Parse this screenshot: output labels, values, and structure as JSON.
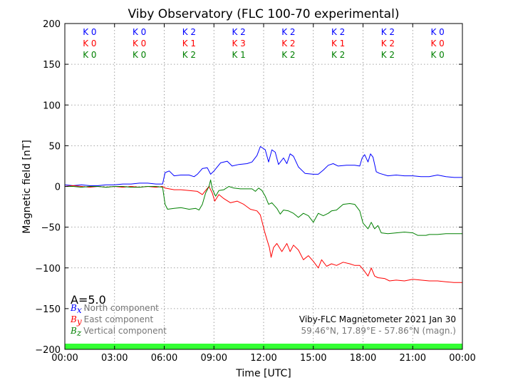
{
  "chart_data": {
    "type": "line",
    "title": "Viby Observatory (FLC 100-70 experimental)",
    "xlabel": "Time [UTC]",
    "ylabel": "Magnetic field [nT]",
    "xlim": [
      0,
      24
    ],
    "ylim": [
      -200,
      200
    ],
    "x_ticks": [
      0,
      3,
      6,
      9,
      12,
      15,
      18,
      21,
      24
    ],
    "x_tick_labels": [
      "00:00",
      "03:00",
      "06:00",
      "09:00",
      "12:00",
      "15:00",
      "18:00",
      "21:00",
      "00:00"
    ],
    "y_ticks": [
      -200,
      -150,
      -100,
      -50,
      0,
      50,
      100,
      150,
      200
    ],
    "y_tick_labels": [
      "−200",
      "−150",
      "−100",
      "−50",
      "0",
      "50",
      "100",
      "150",
      "200"
    ],
    "grid": true,
    "k_indices": {
      "labels": [
        [
          "K 0",
          "K 0",
          "K 2",
          "K 2",
          "K 2",
          "K 2",
          "K 2",
          "K 0"
        ],
        [
          "K 0",
          "K 0",
          "K 1",
          "K 3",
          "K 2",
          "K 1",
          "K 2",
          "K 0"
        ],
        [
          "K 0",
          "K 0",
          "K 2",
          "K 1",
          "K 2",
          "K 2",
          "K 2",
          "K 0"
        ]
      ]
    },
    "a_index": "A=5.0",
    "legend": [
      {
        "symbol": "B",
        "sub": "x",
        "text": "North component"
      },
      {
        "symbol": "B",
        "sub": "y",
        "text": "East component"
      },
      {
        "symbol": "B",
        "sub": "z",
        "text": "Vertical component"
      }
    ],
    "info_line1": "Viby-FLC Magnetometer 2021 Jan 30",
    "info_line2": "59.46°N, 17.89°E - 57.86°N (magn.)",
    "series": [
      {
        "key": "north",
        "color": "#0000ff",
        "points": [
          [
            0,
            2
          ],
          [
            0.5,
            1
          ],
          [
            1,
            2
          ],
          [
            1.5,
            1
          ],
          [
            2,
            1
          ],
          [
            2.5,
            2
          ],
          [
            3,
            2
          ],
          [
            3.5,
            3
          ],
          [
            4,
            3
          ],
          [
            4.5,
            4
          ],
          [
            5,
            4
          ],
          [
            5.5,
            3
          ],
          [
            5.9,
            3
          ],
          [
            6.05,
            17
          ],
          [
            6.3,
            19
          ],
          [
            6.6,
            13
          ],
          [
            7,
            14
          ],
          [
            7.5,
            14
          ],
          [
            7.8,
            12
          ],
          [
            8,
            15
          ],
          [
            8.3,
            22
          ],
          [
            8.6,
            23
          ],
          [
            8.8,
            15
          ],
          [
            9,
            19
          ],
          [
            9.4,
            29
          ],
          [
            9.8,
            31
          ],
          [
            10.1,
            25
          ],
          [
            10.5,
            27
          ],
          [
            11,
            28
          ],
          [
            11.3,
            30
          ],
          [
            11.6,
            38
          ],
          [
            11.8,
            49
          ],
          [
            12.1,
            45
          ],
          [
            12.3,
            30
          ],
          [
            12.5,
            45
          ],
          [
            12.7,
            42
          ],
          [
            12.9,
            27
          ],
          [
            13.2,
            35
          ],
          [
            13.4,
            28
          ],
          [
            13.6,
            40
          ],
          [
            13.8,
            37
          ],
          [
            14.1,
            24
          ],
          [
            14.5,
            16
          ],
          [
            15,
            15
          ],
          [
            15.3,
            15
          ],
          [
            15.6,
            20
          ],
          [
            15.9,
            26
          ],
          [
            16.2,
            28
          ],
          [
            16.5,
            25
          ],
          [
            17,
            26
          ],
          [
            17.5,
            26
          ],
          [
            17.8,
            25
          ],
          [
            17.95,
            35
          ],
          [
            18.1,
            39
          ],
          [
            18.3,
            30
          ],
          [
            18.45,
            40
          ],
          [
            18.6,
            36
          ],
          [
            18.8,
            18
          ],
          [
            19,
            16
          ],
          [
            19.5,
            13
          ],
          [
            20,
            14
          ],
          [
            20.5,
            13
          ],
          [
            21,
            13
          ],
          [
            21.5,
            12
          ],
          [
            22,
            12
          ],
          [
            22.5,
            14
          ],
          [
            23,
            12
          ],
          [
            23.5,
            11
          ],
          [
            24,
            11
          ]
        ]
      },
      {
        "key": "east",
        "color": "#ff0000",
        "points": [
          [
            0,
            0
          ],
          [
            0.5,
            1
          ],
          [
            1,
            0
          ],
          [
            1.5,
            -1
          ],
          [
            2,
            0
          ],
          [
            2.5,
            -1
          ],
          [
            3,
            0
          ],
          [
            3.5,
            -1
          ],
          [
            4,
            0
          ],
          [
            4.5,
            -1
          ],
          [
            5,
            0
          ],
          [
            5.5,
            -1
          ],
          [
            5.9,
            0
          ],
          [
            6.05,
            -2
          ],
          [
            6.3,
            -3
          ],
          [
            6.6,
            -4
          ],
          [
            7,
            -4
          ],
          [
            7.5,
            -5
          ],
          [
            8,
            -6
          ],
          [
            8.3,
            -10
          ],
          [
            8.5,
            -5
          ],
          [
            8.7,
            0
          ],
          [
            8.9,
            -8
          ],
          [
            9.05,
            -18
          ],
          [
            9.3,
            -10
          ],
          [
            9.6,
            -15
          ],
          [
            10,
            -20
          ],
          [
            10.4,
            -18
          ],
          [
            10.8,
            -22
          ],
          [
            11.2,
            -28
          ],
          [
            11.6,
            -30
          ],
          [
            11.8,
            -35
          ],
          [
            12.05,
            -55
          ],
          [
            12.2,
            -65
          ],
          [
            12.35,
            -75
          ],
          [
            12.45,
            -87
          ],
          [
            12.6,
            -75
          ],
          [
            12.8,
            -70
          ],
          [
            13.1,
            -80
          ],
          [
            13.4,
            -70
          ],
          [
            13.6,
            -80
          ],
          [
            13.8,
            -72
          ],
          [
            14.1,
            -78
          ],
          [
            14.4,
            -90
          ],
          [
            14.7,
            -85
          ],
          [
            15,
            -92
          ],
          [
            15.3,
            -100
          ],
          [
            15.5,
            -90
          ],
          [
            15.8,
            -98
          ],
          [
            16.1,
            -95
          ],
          [
            16.4,
            -97
          ],
          [
            16.8,
            -93
          ],
          [
            17.2,
            -95
          ],
          [
            17.5,
            -97
          ],
          [
            17.8,
            -97
          ],
          [
            18.05,
            -103
          ],
          [
            18.3,
            -110
          ],
          [
            18.5,
            -100
          ],
          [
            18.7,
            -110
          ],
          [
            18.9,
            -112
          ],
          [
            19.3,
            -113
          ],
          [
            19.6,
            -116
          ],
          [
            20,
            -115
          ],
          [
            20.5,
            -116
          ],
          [
            21,
            -114
          ],
          [
            21.5,
            -115
          ],
          [
            22,
            -116
          ],
          [
            22.5,
            -116
          ],
          [
            23,
            -117
          ],
          [
            23.5,
            -118
          ],
          [
            24,
            -118
          ]
        ]
      },
      {
        "key": "vertical",
        "color": "#008000",
        "points": [
          [
            0,
            0
          ],
          [
            0.5,
            0
          ],
          [
            1,
            -1
          ],
          [
            1.5,
            0
          ],
          [
            2,
            0
          ],
          [
            2.5,
            -1
          ],
          [
            3,
            0
          ],
          [
            3.5,
            0
          ],
          [
            4,
            -1
          ],
          [
            4.5,
            -1
          ],
          [
            5,
            0
          ],
          [
            5.5,
            0
          ],
          [
            5.9,
            -1
          ],
          [
            6.05,
            -22
          ],
          [
            6.2,
            -28
          ],
          [
            6.6,
            -27
          ],
          [
            7,
            -26
          ],
          [
            7.5,
            -28
          ],
          [
            7.9,
            -27
          ],
          [
            8.1,
            -29
          ],
          [
            8.3,
            -22
          ],
          [
            8.5,
            -8
          ],
          [
            8.7,
            0
          ],
          [
            8.8,
            8
          ],
          [
            8.9,
            -3
          ],
          [
            9.1,
            -12
          ],
          [
            9.3,
            -5
          ],
          [
            9.6,
            -4
          ],
          [
            9.9,
            0
          ],
          [
            10.2,
            -2
          ],
          [
            10.6,
            -3
          ],
          [
            11,
            -3
          ],
          [
            11.3,
            -3
          ],
          [
            11.5,
            -6
          ],
          [
            11.7,
            -2
          ],
          [
            11.9,
            -5
          ],
          [
            12.1,
            -12
          ],
          [
            12.3,
            -22
          ],
          [
            12.5,
            -20
          ],
          [
            12.8,
            -27
          ],
          [
            13,
            -34
          ],
          [
            13.2,
            -29
          ],
          [
            13.5,
            -30
          ],
          [
            13.8,
            -33
          ],
          [
            14.1,
            -38
          ],
          [
            14.4,
            -33
          ],
          [
            14.7,
            -36
          ],
          [
            15,
            -44
          ],
          [
            15.3,
            -33
          ],
          [
            15.6,
            -36
          ],
          [
            15.9,
            -33
          ],
          [
            16.1,
            -30
          ],
          [
            16.4,
            -29
          ],
          [
            16.8,
            -22
          ],
          [
            17.2,
            -21
          ],
          [
            17.5,
            -22
          ],
          [
            17.8,
            -30
          ],
          [
            18,
            -45
          ],
          [
            18.3,
            -52
          ],
          [
            18.5,
            -44
          ],
          [
            18.7,
            -52
          ],
          [
            18.9,
            -48
          ],
          [
            19.1,
            -57
          ],
          [
            19.5,
            -58
          ],
          [
            20,
            -57
          ],
          [
            20.5,
            -56
          ],
          [
            21,
            -57
          ],
          [
            21.3,
            -60
          ],
          [
            21.8,
            -60
          ],
          [
            22,
            -59
          ],
          [
            22.5,
            -59
          ],
          [
            23,
            -58
          ],
          [
            23.5,
            -58
          ],
          [
            24,
            -58
          ]
        ]
      }
    ]
  },
  "colors": {
    "north": "#0000ff",
    "east": "#ff0000",
    "vertical": "#008000",
    "status_bar": "#33ff33",
    "grid": "#888888"
  }
}
